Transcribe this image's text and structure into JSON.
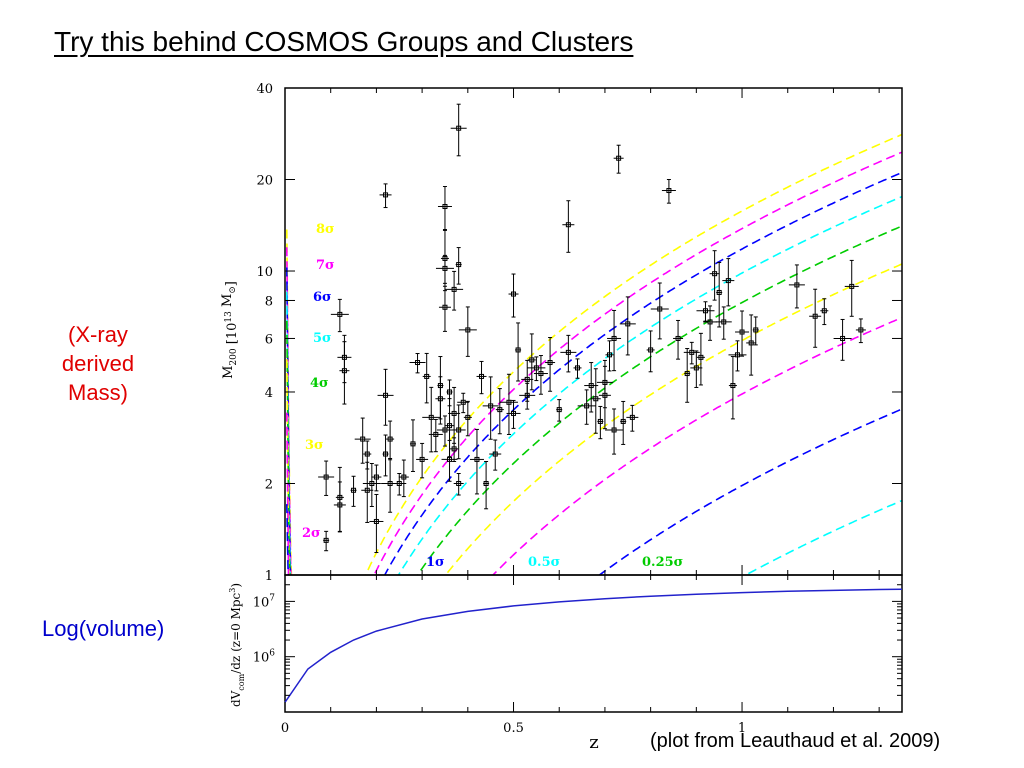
{
  "slide": {
    "title": "Try this behind COSMOS Groups and Clusters",
    "left_label_mass": "(X-ray\nderived\nMass)",
    "left_label_volume": "Log(volume)",
    "credit": "(plot from Leauthaud et al. 2009)"
  },
  "chart_data": [
    {
      "type": "scatter",
      "panel": "top",
      "ylabel": "M200 [10^13 M☉]",
      "xlabel": "z",
      "xlim": [
        0,
        1.35
      ],
      "ylim": [
        1,
        40
      ],
      "yscale": "log",
      "yticks": [
        1,
        2,
        4,
        6,
        8,
        10,
        20,
        40
      ],
      "xticks": [
        0,
        0.5,
        1
      ],
      "grid": false,
      "threshold_curves": [
        {
          "name": "8σ",
          "color": "#ffff00",
          "factor": 8
        },
        {
          "name": "7σ",
          "color": "#ff00ff",
          "factor": 7
        },
        {
          "name": "6σ",
          "color": "#0000ff",
          "factor": 6
        },
        {
          "name": "5σ",
          "color": "#00ffff",
          "factor": 5
        },
        {
          "name": "4σ",
          "color": "#00cc00",
          "factor": 4
        },
        {
          "name": "3σ",
          "color": "#ffff00",
          "factor": 3
        },
        {
          "name": "2σ",
          "color": "#ff00ff",
          "factor": 2
        },
        {
          "name": "1σ",
          "color": "#0000ff",
          "factor": 1
        },
        {
          "name": "0.5σ",
          "color": "#00ffff",
          "factor": 0.5
        },
        {
          "name": "0.25σ",
          "color": "#00cc00",
          "factor": 0.25
        }
      ],
      "points": [
        [
          0.09,
          1.3
        ],
        [
          0.09,
          2.1
        ],
        [
          0.12,
          1.7
        ],
        [
          0.12,
          1.8
        ],
        [
          0.12,
          7.2
        ],
        [
          0.13,
          5.2
        ],
        [
          0.13,
          4.7
        ],
        [
          0.15,
          1.9
        ],
        [
          0.17,
          2.8
        ],
        [
          0.18,
          1.9
        ],
        [
          0.18,
          2.5
        ],
        [
          0.19,
          2.0
        ],
        [
          0.2,
          1.5
        ],
        [
          0.2,
          2.1
        ],
        [
          0.22,
          2.5
        ],
        [
          0.22,
          3.9
        ],
        [
          0.22,
          17.8
        ],
        [
          0.23,
          2.8
        ],
        [
          0.23,
          2.0
        ],
        [
          0.25,
          2.0
        ],
        [
          0.26,
          2.1
        ],
        [
          0.28,
          2.7
        ],
        [
          0.29,
          5.0
        ],
        [
          0.3,
          2.4
        ],
        [
          0.31,
          4.5
        ],
        [
          0.32,
          3.3
        ],
        [
          0.33,
          2.9
        ],
        [
          0.34,
          3.8
        ],
        [
          0.34,
          4.2
        ],
        [
          0.35,
          3.0
        ],
        [
          0.35,
          7.6
        ],
        [
          0.35,
          11.0
        ],
        [
          0.35,
          10.2
        ],
        [
          0.35,
          16.3
        ],
        [
          0.36,
          3.1
        ],
        [
          0.36,
          4.0
        ],
        [
          0.36,
          2.4
        ],
        [
          0.37,
          3.4
        ],
        [
          0.37,
          2.6
        ],
        [
          0.37,
          8.7
        ],
        [
          0.38,
          3.0
        ],
        [
          0.38,
          2.0
        ],
        [
          0.38,
          10.5
        ],
        [
          0.38,
          29.5
        ],
        [
          0.39,
          3.7
        ],
        [
          0.4,
          3.3
        ],
        [
          0.4,
          6.4
        ],
        [
          0.42,
          2.4
        ],
        [
          0.43,
          4.5
        ],
        [
          0.44,
          2.0
        ],
        [
          0.45,
          3.6
        ],
        [
          0.46,
          2.5
        ],
        [
          0.47,
          3.5
        ],
        [
          0.49,
          3.7
        ],
        [
          0.5,
          3.4
        ],
        [
          0.5,
          8.4
        ],
        [
          0.51,
          5.5
        ],
        [
          0.53,
          3.9
        ],
        [
          0.53,
          4.4
        ],
        [
          0.54,
          5.1
        ],
        [
          0.55,
          4.8
        ],
        [
          0.56,
          4.6
        ],
        [
          0.58,
          5.0
        ],
        [
          0.6,
          3.5
        ],
        [
          0.62,
          5.4
        ],
        [
          0.62,
          14.2
        ],
        [
          0.64,
          4.8
        ],
        [
          0.66,
          3.6
        ],
        [
          0.67,
          4.2
        ],
        [
          0.68,
          3.8
        ],
        [
          0.69,
          3.2
        ],
        [
          0.7,
          4.3
        ],
        [
          0.7,
          3.9
        ],
        [
          0.71,
          5.3
        ],
        [
          0.72,
          3.0
        ],
        [
          0.72,
          6.0
        ],
        [
          0.73,
          23.5
        ],
        [
          0.74,
          3.2
        ],
        [
          0.75,
          6.7
        ],
        [
          0.76,
          3.3
        ],
        [
          0.8,
          5.5
        ],
        [
          0.82,
          7.5
        ],
        [
          0.84,
          18.4
        ],
        [
          0.86,
          6.0
        ],
        [
          0.88,
          4.6
        ],
        [
          0.89,
          5.4
        ],
        [
          0.9,
          4.8
        ],
        [
          0.91,
          5.2
        ],
        [
          0.92,
          7.4
        ],
        [
          0.93,
          6.8
        ],
        [
          0.94,
          9.8
        ],
        [
          0.95,
          8.5
        ],
        [
          0.96,
          6.8
        ],
        [
          0.97,
          9.3
        ],
        [
          0.98,
          4.2
        ],
        [
          0.99,
          5.3
        ],
        [
          1.0,
          6.3
        ],
        [
          1.02,
          5.8
        ],
        [
          1.03,
          6.4
        ],
        [
          1.12,
          9.0
        ],
        [
          1.16,
          7.1
        ],
        [
          1.18,
          7.4
        ],
        [
          1.22,
          6.0
        ],
        [
          1.24,
          8.9
        ],
        [
          1.26,
          6.4
        ]
      ]
    },
    {
      "type": "line",
      "panel": "bottom",
      "ylabel": "dVcom/dz (z=0 Mpc³)",
      "xlabel": "z",
      "xlim": [
        0,
        1.35
      ],
      "yscale": "log",
      "ylim": [
        100000,
        30000000
      ],
      "yticks": [
        1000000,
        10000000
      ],
      "x": [
        0.0,
        0.05,
        0.1,
        0.15,
        0.2,
        0.3,
        0.4,
        0.5,
        0.6,
        0.7,
        0.8,
        0.9,
        1.0,
        1.1,
        1.2,
        1.3,
        1.35
      ],
      "y": [
        150000,
        600000,
        1200000,
        2000000,
        2900000,
        4800000,
        6600000,
        8300000,
        9800000,
        11200000,
        12400000,
        13500000,
        14400000,
        15200000,
        15800000,
        16400000,
        16600000
      ],
      "color": "#2222cc"
    }
  ],
  "axes_text": {
    "top_ylabel": "M",
    "top_ylabel_sub": "200",
    "top_ylabel_units": "[10",
    "top_ylabel_exp": "13",
    "top_ylabel_end": "M",
    "top_ylabel_sun": "⊙",
    "bottom_ylabel": "dV",
    "bottom_ylabel_sub": "com",
    "bottom_ylabel_rest": "/dz (z=0 Mpc",
    "bottom_ylabel_exp": "3",
    "xlabel": "z",
    "bottom_tick_1e6": "10",
    "bottom_tick_1e6_exp": "6",
    "bottom_tick_1e7": "10",
    "bottom_tick_1e7_exp": "7"
  }
}
